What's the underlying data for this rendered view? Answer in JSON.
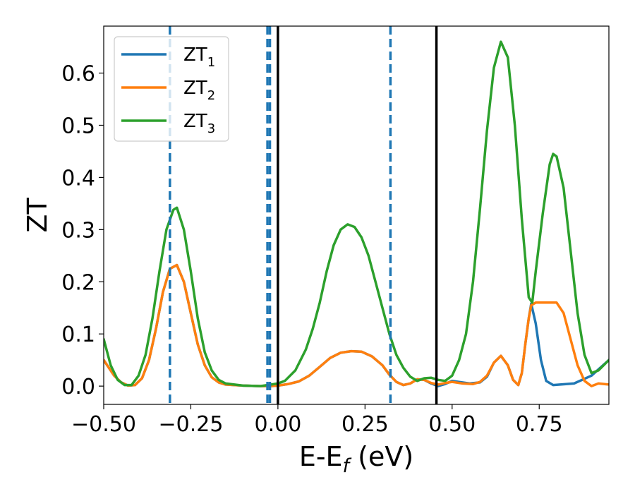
{
  "chart_data": {
    "type": "line",
    "xlabel": "E-E",
    "xlabel_sub": "f",
    "xlabel_unit": " (eV)",
    "ylabel": "ZT",
    "xlim": [
      -0.5,
      0.95
    ],
    "ylim": [
      -0.035,
      0.69
    ],
    "grid": false,
    "legend_placement": "top-left",
    "xticks": [
      -0.5,
      -0.25,
      0.0,
      0.25,
      0.5,
      0.75
    ],
    "xtick_labels": [
      "−0.50",
      "−0.25",
      "0.00",
      "0.25",
      "0.50",
      "0.75"
    ],
    "yticks": [
      0.0,
      0.1,
      0.2,
      0.3,
      0.4,
      0.5,
      0.6
    ],
    "ytick_labels": [
      "0.0",
      "0.1",
      "0.2",
      "0.3",
      "0.4",
      "0.5",
      "0.6"
    ],
    "series": [
      {
        "name": "ZT",
        "sub": "1",
        "color": "#1f77b4",
        "points": [
          [
            -0.5,
            0.05
          ],
          [
            -0.47,
            0.02
          ],
          [
            -0.45,
            0.007
          ],
          [
            -0.43,
            0.001
          ],
          [
            -0.41,
            0.002
          ],
          [
            -0.39,
            0.015
          ],
          [
            -0.37,
            0.05
          ],
          [
            -0.35,
            0.11
          ],
          [
            -0.33,
            0.18
          ],
          [
            -0.31,
            0.225
          ],
          [
            -0.29,
            0.232
          ],
          [
            -0.27,
            0.2
          ],
          [
            -0.25,
            0.14
          ],
          [
            -0.23,
            0.08
          ],
          [
            -0.21,
            0.04
          ],
          [
            -0.19,
            0.017
          ],
          [
            -0.17,
            0.007
          ],
          [
            -0.15,
            0.003
          ],
          [
            -0.1,
            0.001
          ],
          [
            -0.05,
            0.0
          ],
          [
            -0.02,
            0.0
          ],
          [
            0.0,
            0.001
          ],
          [
            0.03,
            0.004
          ],
          [
            0.06,
            0.009
          ],
          [
            0.09,
            0.02
          ],
          [
            0.12,
            0.037
          ],
          [
            0.15,
            0.054
          ],
          [
            0.18,
            0.064
          ],
          [
            0.21,
            0.067
          ],
          [
            0.24,
            0.066
          ],
          [
            0.27,
            0.057
          ],
          [
            0.3,
            0.04
          ],
          [
            0.32,
            0.022
          ],
          [
            0.34,
            0.008
          ],
          [
            0.36,
            0.002
          ],
          [
            0.38,
            0.005
          ],
          [
            0.4,
            0.013
          ],
          [
            0.42,
            0.012
          ],
          [
            0.44,
            0.005
          ],
          [
            0.46,
            0.0
          ],
          [
            0.48,
            0.004
          ],
          [
            0.5,
            0.01
          ],
          [
            0.52,
            0.008
          ],
          [
            0.55,
            0.005
          ],
          [
            0.58,
            0.007
          ],
          [
            0.6,
            0.018
          ],
          [
            0.62,
            0.045
          ],
          [
            0.64,
            0.058
          ],
          [
            0.66,
            0.04
          ],
          [
            0.675,
            0.012
          ],
          [
            0.69,
            0.002
          ],
          [
            0.7,
            0.025
          ],
          [
            0.71,
            0.08
          ],
          [
            0.72,
            0.13
          ],
          [
            0.727,
            0.158
          ],
          [
            0.74,
            0.12
          ],
          [
            0.755,
            0.05
          ],
          [
            0.77,
            0.01
          ],
          [
            0.79,
            0.002
          ],
          [
            0.85,
            0.005
          ],
          [
            0.9,
            0.02
          ],
          [
            0.95,
            0.05
          ]
        ]
      },
      {
        "name": "ZT",
        "sub": "2",
        "color": "#ff7f0e",
        "points": [
          [
            -0.5,
            0.05
          ],
          [
            -0.47,
            0.02
          ],
          [
            -0.45,
            0.007
          ],
          [
            -0.43,
            0.001
          ],
          [
            -0.41,
            0.002
          ],
          [
            -0.39,
            0.015
          ],
          [
            -0.37,
            0.05
          ],
          [
            -0.35,
            0.11
          ],
          [
            -0.33,
            0.18
          ],
          [
            -0.31,
            0.225
          ],
          [
            -0.29,
            0.232
          ],
          [
            -0.27,
            0.2
          ],
          [
            -0.25,
            0.14
          ],
          [
            -0.23,
            0.08
          ],
          [
            -0.21,
            0.04
          ],
          [
            -0.19,
            0.017
          ],
          [
            -0.17,
            0.007
          ],
          [
            -0.15,
            0.003
          ],
          [
            -0.1,
            0.001
          ],
          [
            -0.05,
            0.0
          ],
          [
            -0.02,
            0.0
          ],
          [
            0.0,
            0.001
          ],
          [
            0.03,
            0.004
          ],
          [
            0.06,
            0.009
          ],
          [
            0.09,
            0.02
          ],
          [
            0.12,
            0.037
          ],
          [
            0.15,
            0.054
          ],
          [
            0.18,
            0.064
          ],
          [
            0.21,
            0.067
          ],
          [
            0.24,
            0.066
          ],
          [
            0.27,
            0.057
          ],
          [
            0.3,
            0.04
          ],
          [
            0.32,
            0.022
          ],
          [
            0.34,
            0.008
          ],
          [
            0.36,
            0.002
          ],
          [
            0.38,
            0.005
          ],
          [
            0.4,
            0.013
          ],
          [
            0.42,
            0.012
          ],
          [
            0.44,
            0.006
          ],
          [
            0.46,
            0.003
          ],
          [
            0.48,
            0.006
          ],
          [
            0.5,
            0.008
          ],
          [
            0.53,
            0.005
          ],
          [
            0.56,
            0.004
          ],
          [
            0.58,
            0.008
          ],
          [
            0.6,
            0.02
          ],
          [
            0.62,
            0.045
          ],
          [
            0.64,
            0.058
          ],
          [
            0.66,
            0.04
          ],
          [
            0.675,
            0.012
          ],
          [
            0.69,
            0.002
          ],
          [
            0.7,
            0.025
          ],
          [
            0.71,
            0.08
          ],
          [
            0.72,
            0.13
          ],
          [
            0.727,
            0.155
          ],
          [
            0.74,
            0.16
          ],
          [
            0.76,
            0.16
          ],
          [
            0.78,
            0.16
          ],
          [
            0.8,
            0.16
          ],
          [
            0.82,
            0.14
          ],
          [
            0.84,
            0.09
          ],
          [
            0.86,
            0.04
          ],
          [
            0.88,
            0.01
          ],
          [
            0.9,
            0.0
          ],
          [
            0.92,
            0.005
          ],
          [
            0.95,
            0.003
          ]
        ]
      },
      {
        "name": "ZT",
        "sub": "3",
        "color": "#2ca02c",
        "points": [
          [
            -0.5,
            0.09
          ],
          [
            -0.48,
            0.04
          ],
          [
            -0.46,
            0.012
          ],
          [
            -0.44,
            0.002
          ],
          [
            -0.42,
            0.002
          ],
          [
            -0.4,
            0.02
          ],
          [
            -0.38,
            0.06
          ],
          [
            -0.36,
            0.13
          ],
          [
            -0.34,
            0.22
          ],
          [
            -0.32,
            0.3
          ],
          [
            -0.3,
            0.338
          ],
          [
            -0.29,
            0.342
          ],
          [
            -0.27,
            0.3
          ],
          [
            -0.25,
            0.22
          ],
          [
            -0.23,
            0.13
          ],
          [
            -0.21,
            0.065
          ],
          [
            -0.19,
            0.03
          ],
          [
            -0.17,
            0.012
          ],
          [
            -0.15,
            0.005
          ],
          [
            -0.1,
            0.001
          ],
          [
            -0.05,
            0.0
          ],
          [
            0.0,
            0.005
          ],
          [
            0.02,
            0.01
          ],
          [
            0.05,
            0.03
          ],
          [
            0.08,
            0.07
          ],
          [
            0.1,
            0.11
          ],
          [
            0.12,
            0.16
          ],
          [
            0.14,
            0.22
          ],
          [
            0.16,
            0.27
          ],
          [
            0.18,
            0.3
          ],
          [
            0.2,
            0.31
          ],
          [
            0.22,
            0.305
          ],
          [
            0.24,
            0.285
          ],
          [
            0.26,
            0.25
          ],
          [
            0.28,
            0.2
          ],
          [
            0.3,
            0.15
          ],
          [
            0.32,
            0.1
          ],
          [
            0.34,
            0.06
          ],
          [
            0.36,
            0.035
          ],
          [
            0.38,
            0.018
          ],
          [
            0.4,
            0.01
          ],
          [
            0.42,
            0.015
          ],
          [
            0.44,
            0.016
          ],
          [
            0.46,
            0.012
          ],
          [
            0.48,
            0.01
          ],
          [
            0.5,
            0.02
          ],
          [
            0.52,
            0.05
          ],
          [
            0.54,
            0.1
          ],
          [
            0.56,
            0.2
          ],
          [
            0.58,
            0.34
          ],
          [
            0.6,
            0.49
          ],
          [
            0.62,
            0.61
          ],
          [
            0.64,
            0.66
          ],
          [
            0.66,
            0.63
          ],
          [
            0.68,
            0.5
          ],
          [
            0.7,
            0.32
          ],
          [
            0.72,
            0.17
          ],
          [
            0.73,
            0.16
          ],
          [
            0.74,
            0.22
          ],
          [
            0.76,
            0.33
          ],
          [
            0.78,
            0.425
          ],
          [
            0.79,
            0.445
          ],
          [
            0.8,
            0.44
          ],
          [
            0.82,
            0.38
          ],
          [
            0.84,
            0.26
          ],
          [
            0.86,
            0.14
          ],
          [
            0.88,
            0.06
          ],
          [
            0.9,
            0.025
          ],
          [
            0.92,
            0.03
          ],
          [
            0.95,
            0.05
          ]
        ]
      }
    ],
    "vlines": [
      {
        "x": -0.31,
        "color": "#1f77b4",
        "style": "dashed"
      },
      {
        "x": -0.03,
        "color": "#1f77b4",
        "style": "dashed"
      },
      {
        "x": 0.323,
        "color": "#1f77b4",
        "style": "dashed"
      },
      {
        "x": 0.0,
        "color": "#000000",
        "style": "solid"
      },
      {
        "x": 0.455,
        "color": "#000000",
        "style": "solid"
      }
    ]
  }
}
